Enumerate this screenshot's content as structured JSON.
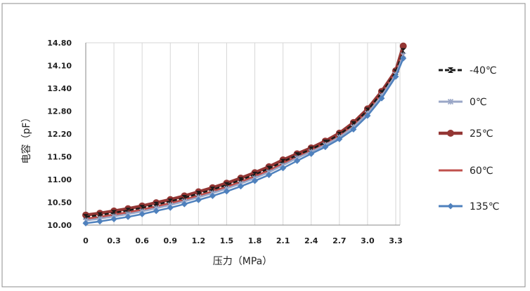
{
  "chart_data": {
    "type": "line",
    "title": "",
    "xlabel": "压力（MPa）",
    "ylabel": "电容（pF）",
    "xlim": [
      0,
      3.4
    ],
    "ylim": [
      10.0,
      14.8
    ],
    "x_ticks": [
      "0",
      "0.3",
      "0.6",
      "0.9",
      "1.2",
      "1.5",
      "1.8",
      "2.1",
      "2.4",
      "2.7",
      "3.0",
      "3.3"
    ],
    "y_ticks": [
      "10.00",
      "10.50",
      "11.00",
      "11.50",
      "12.20",
      "12.80",
      "13.40",
      "14.10",
      "14.80"
    ],
    "grid": "vertical",
    "legend_position": "right",
    "x": [
      0,
      0.15,
      0.3,
      0.45,
      0.6,
      0.75,
      0.9,
      1.05,
      1.2,
      1.35,
      1.5,
      1.65,
      1.8,
      1.95,
      2.1,
      2.25,
      2.4,
      2.55,
      2.7,
      2.85,
      3.0,
      3.15,
      3.3,
      3.38
    ],
    "series": [
      {
        "name": "-40℃",
        "color": "#1a1a1a",
        "marker": "bowtie",
        "dashed": true,
        "values": [
          10.18,
          10.22,
          10.27,
          10.32,
          10.38,
          10.45,
          10.52,
          10.6,
          10.69,
          10.78,
          10.88,
          10.99,
          11.11,
          11.24,
          11.39,
          11.55,
          11.73,
          11.94,
          12.18,
          12.46,
          12.82,
          13.28,
          13.9,
          14.55
        ]
      },
      {
        "name": "0℃",
        "color": "#9aa7c7",
        "marker": "star",
        "values": [
          10.1,
          10.14,
          10.19,
          10.24,
          10.3,
          10.37,
          10.44,
          10.52,
          10.61,
          10.7,
          10.8,
          10.91,
          11.03,
          11.16,
          11.31,
          11.47,
          11.65,
          11.86,
          12.1,
          12.38,
          12.74,
          13.2,
          13.82,
          14.42
        ]
      },
      {
        "name": "25℃",
        "color": "#943634",
        "marker": "circle",
        "values": [
          10.22,
          10.26,
          10.31,
          10.36,
          10.42,
          10.49,
          10.56,
          10.64,
          10.73,
          10.82,
          10.92,
          11.03,
          11.15,
          11.28,
          11.43,
          11.59,
          11.77,
          11.98,
          12.22,
          12.5,
          12.86,
          13.32,
          13.94,
          14.7
        ]
      },
      {
        "name": "60℃",
        "color": "#c0504d",
        "marker": "none",
        "values": [
          10.14,
          10.18,
          10.23,
          10.28,
          10.34,
          10.41,
          10.48,
          10.56,
          10.65,
          10.74,
          10.84,
          10.95,
          11.07,
          11.2,
          11.35,
          11.51,
          11.69,
          11.9,
          12.14,
          12.42,
          12.78,
          13.24,
          13.86,
          14.5
        ]
      },
      {
        "name": "135℃",
        "color": "#4f81bd",
        "marker": "diamond",
        "values": [
          10.04,
          10.08,
          10.13,
          10.18,
          10.24,
          10.31,
          10.38,
          10.46,
          10.55,
          10.64,
          10.74,
          10.85,
          10.97,
          11.1,
          11.25,
          11.41,
          11.59,
          11.8,
          12.04,
          12.32,
          12.68,
          13.14,
          13.76,
          14.32
        ]
      }
    ]
  }
}
